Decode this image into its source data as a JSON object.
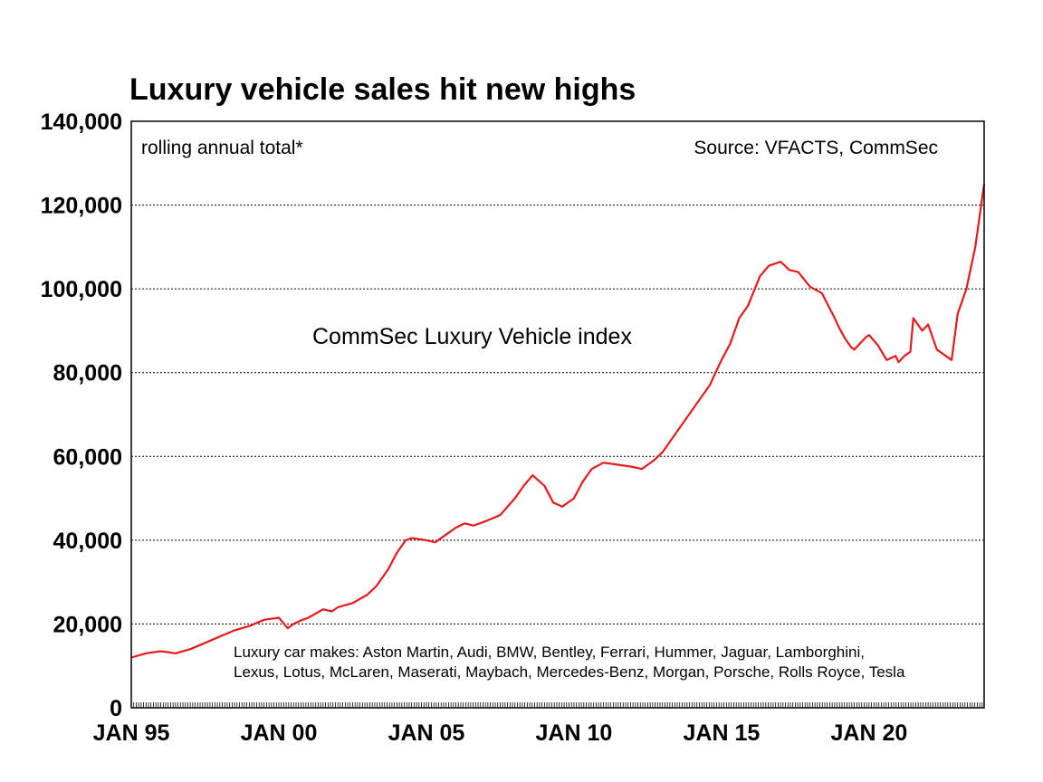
{
  "chart_data": {
    "type": "line",
    "title": "Luxury vehicle sales hit new highs",
    "subtitle": "rolling annual total*",
    "source": "Source: VFACTS, CommSec",
    "series_label": "CommSec Luxury Vehicle index",
    "footnote_lines": [
      "Luxury car makes: Aston Martin, Audi, BMW, Bentley, Ferrari, Hummer, Jaguar, Lamborghini,",
      "Lexus, Lotus, McLaren, Maserati, Maybach, Mercedes-Benz, Morgan, Porsche, Rolls Royce, Tesla"
    ],
    "x_tick_labels": [
      "JAN 95",
      "JAN 00",
      "JAN 05",
      "JAN 10",
      "JAN 15",
      "JAN 20"
    ],
    "x_tick_years": [
      1995,
      2000,
      2005,
      2010,
      2015,
      2020
    ],
    "xlim": [
      1995.0,
      2023.9
    ],
    "y_tick_labels": [
      "0",
      "20,000",
      "40,000",
      "60,000",
      "80,000",
      "100,000",
      "120,000",
      "140,000"
    ],
    "y_tick_values": [
      0,
      20000,
      40000,
      60000,
      80000,
      100000,
      120000,
      140000
    ],
    "ylim": [
      0,
      140000
    ],
    "grid": "horizontal dotted",
    "series_color": "#e41a1c",
    "series": [
      {
        "x": [
          1995.0,
          1995.5,
          1996.0,
          1996.5,
          1997.0,
          1997.5,
          1998.0,
          1998.5,
          1999.0,
          1999.5,
          2000.0,
          2000.3,
          2000.5,
          2000.8,
          2001.0,
          2001.5,
          2001.8,
          2002.0,
          2002.5,
          2003.0,
          2003.3,
          2003.7,
          2004.0,
          2004.3,
          2004.5,
          2005.0,
          2005.3,
          2005.6,
          2006.0,
          2006.3,
          2006.6,
          2007.0,
          2007.5,
          2008.0,
          2008.3,
          2008.6,
          2009.0,
          2009.3,
          2009.6,
          2010.0,
          2010.3,
          2010.6,
          2011.0,
          2011.5,
          2012.0,
          2012.3,
          2012.7,
          2013.0,
          2013.5,
          2014.0,
          2014.3,
          2014.6,
          2015.0,
          2015.3,
          2015.6,
          2015.9,
          2016.3,
          2016.6,
          2017.0,
          2017.3,
          2017.6,
          2018.0,
          2018.4,
          2018.8,
          2019.0,
          2019.2,
          2019.4,
          2019.5,
          2019.7,
          2019.9,
          2020.0,
          2020.3,
          2020.6,
          2020.9,
          2021.0,
          2021.2,
          2021.4,
          2021.5,
          2021.8,
          2022.0,
          2022.3,
          2022.6,
          2022.8,
          2023.0,
          2023.3,
          2023.6,
          2023.9
        ],
        "values": [
          12000,
          13000,
          13500,
          13000,
          14000,
          15500,
          17000,
          18500,
          19500,
          21000,
          21500,
          19000,
          20000,
          21000,
          21500,
          23500,
          23000,
          24000,
          25000,
          27000,
          29000,
          33000,
          37000,
          40000,
          40500,
          40000,
          39500,
          41000,
          43000,
          44000,
          43500,
          44500,
          46000,
          50000,
          53000,
          55500,
          53000,
          49000,
          48000,
          50000,
          54000,
          57000,
          58500,
          58000,
          57500,
          57000,
          59000,
          61000,
          66000,
          71000,
          74000,
          77000,
          83000,
          87000,
          93000,
          96000,
          103000,
          105500,
          106500,
          104500,
          104000,
          100500,
          99000,
          93500,
          90500,
          88000,
          86000,
          85500,
          87000,
          88500,
          89000,
          86500,
          83000,
          84000,
          82500,
          84000,
          85000,
          93000,
          90000,
          91500,
          85500,
          84000,
          83000,
          94000,
          100000,
          110000,
          125000
        ]
      }
    ]
  }
}
